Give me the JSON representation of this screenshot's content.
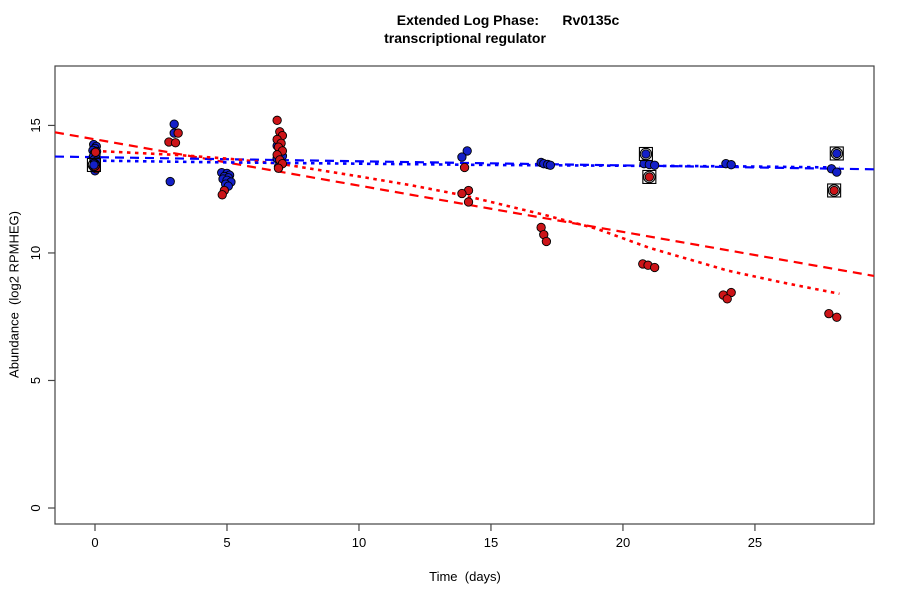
{
  "chart_data": {
    "type": "scatter",
    "title_line1": "Extended Log Phase:      Rv0135c",
    "title_line2": "transcriptional regulator",
    "xlabel": "Time  (days)",
    "ylabel": "Abundance  (log2 RPMHEG)",
    "xlim": [
      -1.515,
      29.51
    ],
    "ylim": [
      -0.627,
      17.33
    ],
    "x_ticks": [
      0,
      5,
      10,
      15,
      20,
      25
    ],
    "y_ticks": [
      0,
      5,
      10,
      15
    ],
    "grid": false,
    "legend": "none",
    "colors": {
      "blue_point": "#1420c8",
      "red_point": "#cc1418",
      "blue_line": "#0000ff",
      "red_line": "#ff0000",
      "marker_outline": "#000000",
      "axis": "#444444"
    },
    "series": [
      {
        "name": "blue-points",
        "color": "#1420c8",
        "points": [
          [
            -0.05,
            14.25
          ],
          [
            0.05,
            14.18
          ],
          [
            0.0,
            14.1
          ],
          [
            -0.08,
            14.02
          ],
          [
            0.06,
            13.98
          ],
          [
            -0.02,
            13.92
          ],
          [
            0.04,
            13.85
          ],
          [
            -0.06,
            13.78
          ],
          [
            0.02,
            13.72
          ],
          [
            -0.04,
            13.65
          ],
          [
            0.05,
            13.6
          ],
          [
            -0.02,
            13.52
          ],
          [
            0.01,
            13.45
          ],
          [
            -0.05,
            13.38
          ],
          [
            0.03,
            13.3
          ],
          [
            0.0,
            13.22
          ],
          [
            3.0,
            15.05
          ],
          [
            3.0,
            14.7
          ],
          [
            2.85,
            12.8
          ],
          [
            4.8,
            13.15
          ],
          [
            5.0,
            13.12
          ],
          [
            5.1,
            13.05
          ],
          [
            4.9,
            13.0
          ],
          [
            5.05,
            12.95
          ],
          [
            4.85,
            12.9
          ],
          [
            5.0,
            12.85
          ],
          [
            5.15,
            12.78
          ],
          [
            4.95,
            12.7
          ],
          [
            5.05,
            12.62
          ],
          [
            6.9,
            14.2
          ],
          [
            7.05,
            14.05
          ],
          [
            6.95,
            13.9
          ],
          [
            7.1,
            13.8
          ],
          [
            6.9,
            13.7
          ],
          [
            7.0,
            13.6
          ],
          [
            7.05,
            13.48
          ],
          [
            6.95,
            13.38
          ],
          [
            14.1,
            14.0
          ],
          [
            13.9,
            13.76
          ],
          [
            16.9,
            13.55
          ],
          [
            17.0,
            13.5
          ],
          [
            17.15,
            13.47
          ],
          [
            17.25,
            13.44
          ],
          [
            20.8,
            13.5
          ],
          [
            21.0,
            13.47
          ],
          [
            21.2,
            13.44
          ],
          [
            23.9,
            13.5
          ],
          [
            24.1,
            13.46
          ],
          [
            27.9,
            13.3
          ],
          [
            28.1,
            13.17
          ]
        ]
      },
      {
        "name": "red-points",
        "color": "#cc1418",
        "points": [
          [
            0.02,
            13.95
          ],
          [
            0.05,
            13.3
          ],
          [
            3.15,
            14.7
          ],
          [
            2.8,
            14.35
          ],
          [
            3.05,
            14.32
          ],
          [
            4.9,
            12.45
          ],
          [
            4.82,
            12.28
          ],
          [
            6.9,
            15.2
          ],
          [
            7.0,
            14.75
          ],
          [
            7.1,
            14.6
          ],
          [
            6.9,
            14.45
          ],
          [
            7.05,
            14.3
          ],
          [
            6.95,
            14.15
          ],
          [
            7.1,
            14.0
          ],
          [
            6.9,
            13.85
          ],
          [
            7.0,
            13.65
          ],
          [
            7.1,
            13.5
          ],
          [
            6.95,
            13.32
          ],
          [
            14.0,
            13.35
          ],
          [
            14.15,
            12.45
          ],
          [
            13.9,
            12.33
          ],
          [
            14.15,
            12.0
          ],
          [
            16.9,
            11.0
          ],
          [
            17.0,
            10.72
          ],
          [
            17.1,
            10.45
          ],
          [
            20.75,
            9.57
          ],
          [
            20.95,
            9.52
          ],
          [
            21.2,
            9.43
          ],
          [
            23.8,
            8.35
          ],
          [
            24.1,
            8.45
          ],
          [
            23.95,
            8.2
          ],
          [
            27.8,
            7.62
          ],
          [
            28.1,
            7.48
          ]
        ]
      }
    ],
    "marked_outlier_points": [
      {
        "x": -0.04,
        "y": 13.45,
        "series": "blue"
      },
      {
        "x": 20.87,
        "y": 13.88,
        "series": "blue"
      },
      {
        "x": 21.0,
        "y": 12.98,
        "series": "red"
      },
      {
        "x": 28.1,
        "y": 13.9,
        "series": "blue"
      },
      {
        "x": 28.0,
        "y": 12.45,
        "series": "red"
      }
    ],
    "fit_lines_dashed": [
      {
        "name": "red-dashed-fit",
        "color": "#ff0000",
        "x1": -1.515,
        "y1": 14.73,
        "x2": 29.51,
        "y2": 9.1
      },
      {
        "name": "blue-dashed-fit",
        "color": "#0000ff",
        "x1": -1.515,
        "y1": 13.78,
        "x2": 29.51,
        "y2": 13.28
      }
    ],
    "fit_curves_dotted": [
      {
        "name": "red-dotted-fit",
        "color": "#ff0000",
        "points": [
          [
            0,
            14.0
          ],
          [
            3,
            13.85
          ],
          [
            5,
            13.7
          ],
          [
            7,
            13.5
          ],
          [
            10,
            13.0
          ],
          [
            12,
            12.65
          ],
          [
            14,
            12.25
          ],
          [
            17,
            11.5
          ],
          [
            19,
            10.95
          ],
          [
            21,
            10.2
          ],
          [
            24,
            9.3
          ],
          [
            26,
            8.85
          ],
          [
            28.2,
            8.4
          ]
        ]
      },
      {
        "name": "blue-dotted-fit",
        "color": "#0000ff",
        "points": [
          [
            0,
            13.62
          ],
          [
            5,
            13.55
          ],
          [
            10,
            13.5
          ],
          [
            15,
            13.45
          ],
          [
            20,
            13.42
          ],
          [
            24,
            13.4
          ],
          [
            28.2,
            13.35
          ]
        ]
      }
    ]
  }
}
